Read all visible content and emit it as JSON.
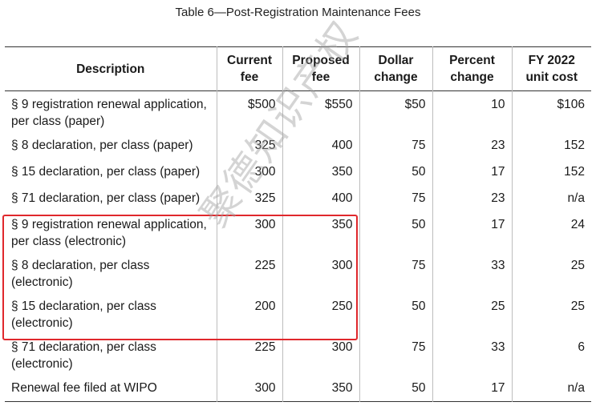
{
  "caption": "Table 6—Post-Registration Maintenance Fees",
  "headers": {
    "description": "Description",
    "current_fee": [
      "Current",
      "fee"
    ],
    "proposed_fee": [
      "Proposed",
      "fee"
    ],
    "dollar_change": [
      "Dollar",
      "change"
    ],
    "percent_change": [
      "Percent",
      "change"
    ],
    "unit_cost": [
      "FY 2022",
      "unit cost"
    ]
  },
  "rows": [
    {
      "description": "§ 9 registration renewal application, per class (paper)",
      "current": "$500",
      "proposed": "$550",
      "dollar": "$50",
      "percent": "10",
      "unit_cost": "$106"
    },
    {
      "description": "§ 8 declaration, per class (paper)",
      "current": "325",
      "proposed": "400",
      "dollar": "75",
      "percent": "23",
      "unit_cost": "152"
    },
    {
      "description": "§ 15 declaration, per class (paper)",
      "current": "300",
      "proposed": "350",
      "dollar": "50",
      "percent": "17",
      "unit_cost": "152"
    },
    {
      "description": "§ 71 declaration, per class (paper)",
      "current": "325",
      "proposed": "400",
      "dollar": "75",
      "percent": "23",
      "unit_cost": "n/a"
    },
    {
      "description": "§ 9 registration renewal application, per class (electronic)",
      "current": "300",
      "proposed": "350",
      "dollar": "50",
      "percent": "17",
      "unit_cost": "24"
    },
    {
      "description": "§ 8 declaration, per class (electronic)",
      "current": "225",
      "proposed": "300",
      "dollar": "75",
      "percent": "33",
      "unit_cost": "25"
    },
    {
      "description": "§ 15 declaration, per class (electronic)",
      "current": "200",
      "proposed": "250",
      "dollar": "50",
      "percent": "25",
      "unit_cost": "25"
    },
    {
      "description": "§ 71 declaration, per class (electronic)",
      "current": "225",
      "proposed": "300",
      "dollar": "75",
      "percent": "33",
      "unit_cost": "6"
    },
    {
      "description": "Renewal fee filed at WIPO",
      "current": "300",
      "proposed": "350",
      "dollar": "50",
      "percent": "17",
      "unit_cost": "n/a"
    }
  ],
  "watermark": "聚德知识产权",
  "highlight_color": "#e0282c"
}
